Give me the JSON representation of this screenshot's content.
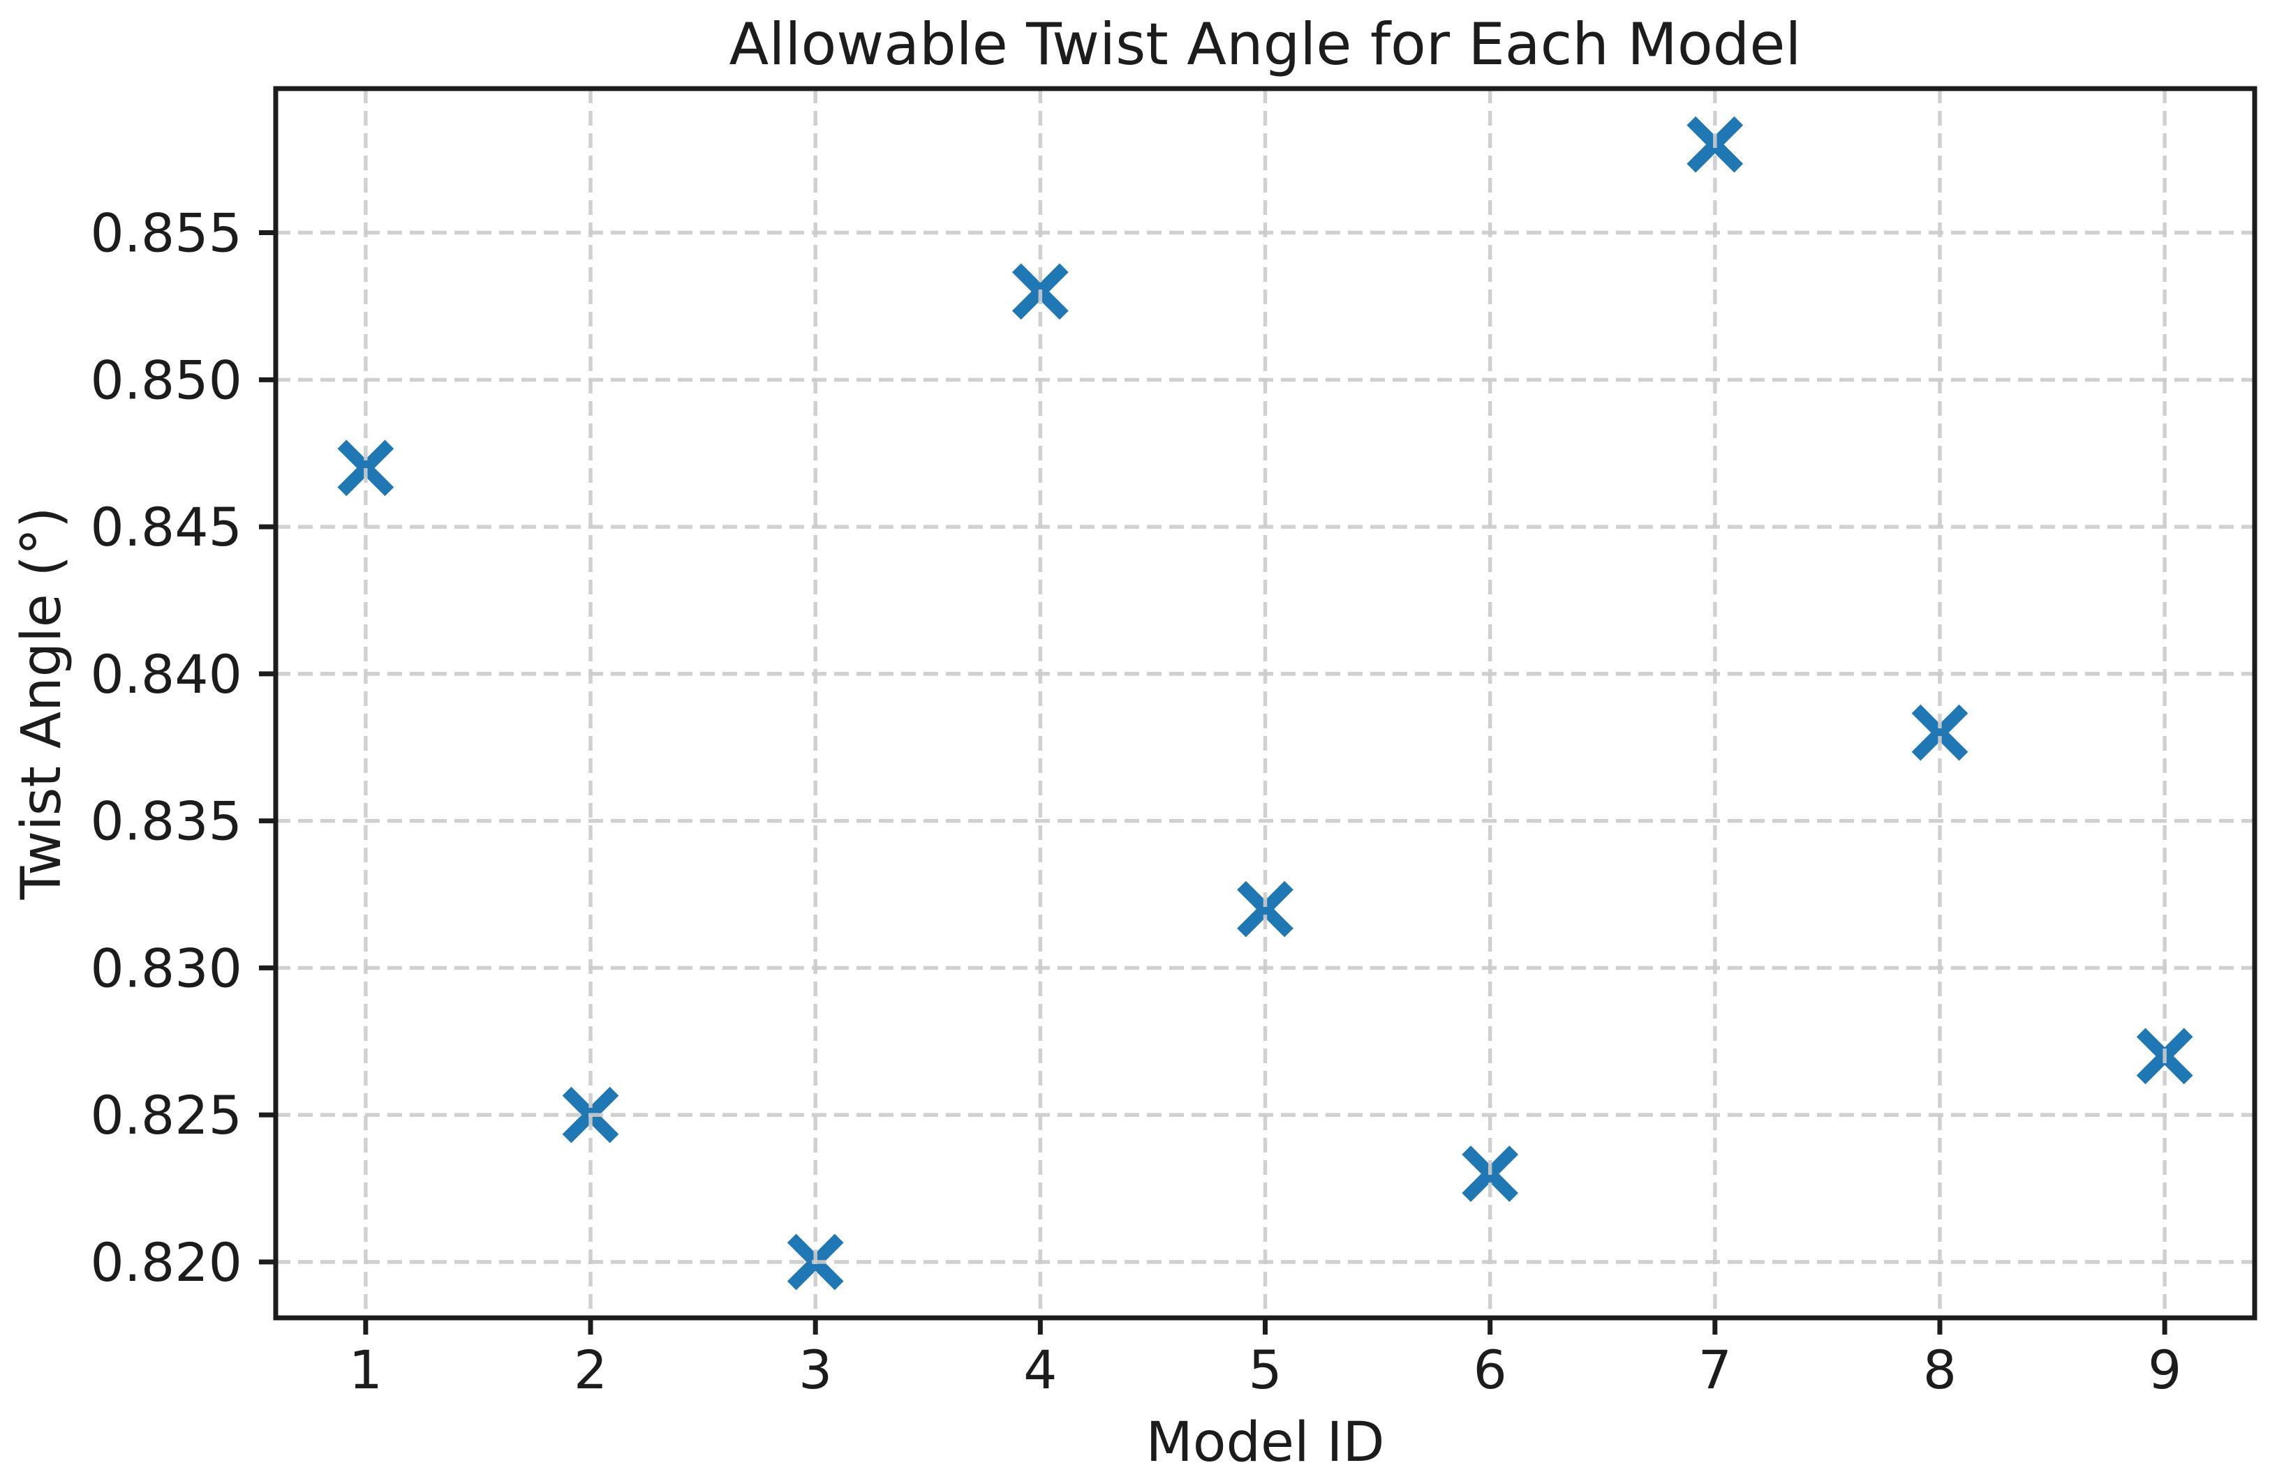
{
  "figure": {
    "background": "#ffffff"
  },
  "chart_data": {
    "type": "scatter",
    "title": "Allowable Twist Angle for Each Model",
    "xlabel": "Model ID",
    "ylabel": "Twist Angle (°)",
    "x": [
      1,
      2,
      3,
      4,
      5,
      6,
      7,
      8,
      9
    ],
    "y": [
      0.847,
      0.825,
      0.82,
      0.853,
      0.832,
      0.823,
      0.858,
      0.838,
      0.827
    ],
    "xlim": [
      0.6,
      9.4
    ],
    "ylim": [
      0.8181,
      0.8599
    ],
    "xticks": [
      1,
      2,
      3,
      4,
      5,
      6,
      7,
      8,
      9
    ],
    "xtick_labels": [
      "1",
      "2",
      "3",
      "4",
      "5",
      "6",
      "7",
      "8",
      "9"
    ],
    "yticks": [
      0.82,
      0.825,
      0.83,
      0.835,
      0.84,
      0.845,
      0.85,
      0.855
    ],
    "ytick_labels": [
      "0.820",
      "0.825",
      "0.830",
      "0.835",
      "0.840",
      "0.845",
      "0.850",
      "0.855"
    ],
    "grid": true,
    "grid_style": "dashed",
    "grid_above_markers": true,
    "legend": false,
    "marker": "x",
    "colors": {
      "marker": "#1f77b4",
      "grid": "#cccccc",
      "spine": "#1c1c1c",
      "text": "#1c1c1c"
    }
  }
}
